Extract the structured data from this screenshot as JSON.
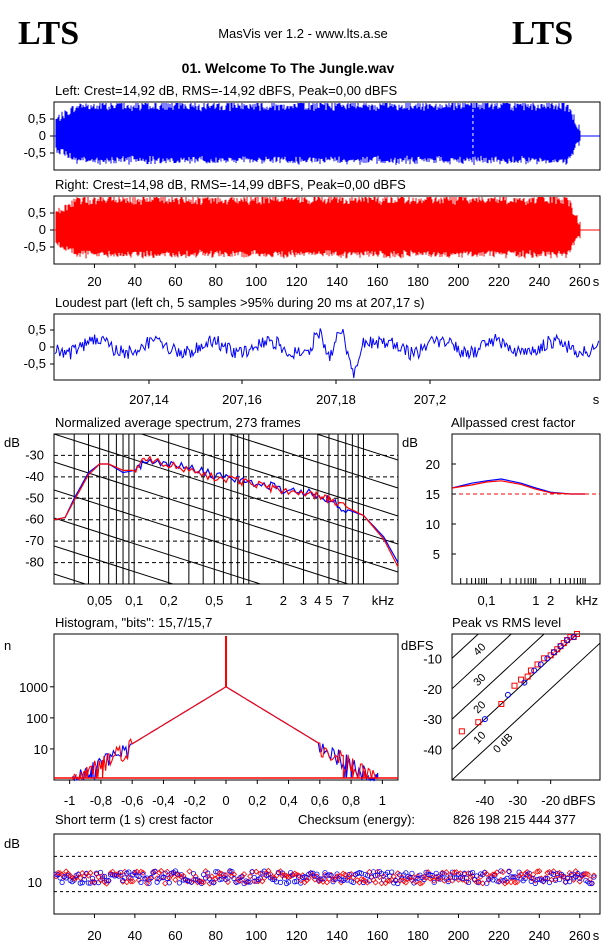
{
  "header": {
    "logo_left": "LTS",
    "logo_right": "LTS",
    "app_title": "MasVis ver 1.2 - www.lts.a.se",
    "file_title": "01. Welcome To The Jungle.wav"
  },
  "chart_data": [
    {
      "id": "left_waveform",
      "type": "area",
      "title": "Left: Crest=14,92 dB, RMS=-14,92 dBFS, Peak=0,00 dBFS",
      "color": "#0000ff",
      "yticks": [
        "0,5",
        "0",
        "-0,5"
      ],
      "ylim": [
        -1,
        1
      ],
      "xlim": [
        0,
        270
      ],
      "marker_x": 207.17
    },
    {
      "id": "right_waveform",
      "type": "area",
      "title": "Right: Crest=14,98 dB, RMS=-14,99 dBFS, Peak=0,00 dBFS",
      "color": "#ff0000",
      "yticks": [
        "0,5",
        "0",
        "-0,5"
      ],
      "ylim": [
        -1,
        1
      ],
      "xlim": [
        0,
        270
      ],
      "xticks": [
        "20",
        "40",
        "60",
        "80",
        "100",
        "120",
        "140",
        "160",
        "180",
        "200",
        "220",
        "240",
        "260",
        "s"
      ]
    },
    {
      "id": "loudest_part",
      "type": "line",
      "title": "Loudest part (left  ch, 5 samples >95% during 20 ms at 207,17 s)",
      "color": "#0000ff",
      "yticks": [
        "0,5",
        "0",
        "-0,5"
      ],
      "xticks": [
        "207,14",
        "207,16",
        "207,18",
        "207,2",
        "s"
      ]
    },
    {
      "id": "spectrum",
      "type": "line",
      "title": "Normalized average spectrum, 273 frames",
      "ylabel": "dB",
      "yticks": [
        "-30",
        "-40",
        "-50",
        "-60",
        "-70",
        "-80"
      ],
      "xticks": [
        "0,05",
        "0,1",
        "0,2",
        "0,5",
        "1",
        "2",
        "3",
        "4",
        "5",
        "7",
        "kHz"
      ],
      "xlim_khz": [
        0.02,
        20
      ],
      "ylim": [
        -90,
        -20
      ],
      "series": [
        {
          "color": "#0000ff",
          "x": [
            0.02,
            0.025,
            0.03,
            0.04,
            0.05,
            0.06,
            0.08,
            0.1,
            0.13,
            0.2,
            0.3,
            0.5,
            0.8,
            1,
            1.5,
            2,
            3,
            4,
            5,
            7,
            10,
            15,
            20
          ],
          "y": [
            -60,
            -59,
            -50,
            -38,
            -34,
            -34,
            -38,
            -37,
            -32,
            -34,
            -36,
            -39,
            -41,
            -43,
            -44,
            -46,
            -47,
            -48,
            -51,
            -55,
            -58,
            -68,
            -80
          ]
        },
        {
          "color": "#ff0000",
          "x": [
            0.02,
            0.025,
            0.03,
            0.04,
            0.05,
            0.06,
            0.08,
            0.1,
            0.13,
            0.2,
            0.3,
            0.5,
            0.8,
            1,
            1.5,
            2,
            3,
            4,
            5,
            7,
            10,
            15,
            20
          ],
          "y": [
            -60,
            -59,
            -51,
            -39,
            -34,
            -34,
            -37,
            -37,
            -31,
            -34,
            -37,
            -40,
            -42,
            -43,
            -45,
            -46,
            -48,
            -49,
            -51,
            -54,
            -58,
            -69,
            -82
          ]
        }
      ]
    },
    {
      "id": "allpassed_crest",
      "type": "line",
      "title": "Allpassed crest factor",
      "ylabel": "dB",
      "yticks": [
        "20",
        "15",
        "10",
        "5"
      ],
      "xticks": [
        "0,1",
        "1",
        "2",
        "kHz"
      ],
      "ylim": [
        0,
        25
      ],
      "reference_db": 15,
      "series": [
        {
          "color": "#0000ff",
          "x": [
            0.02,
            0.05,
            0.1,
            0.2,
            0.5,
            1,
            2,
            5,
            10
          ],
          "y": [
            16,
            16.8,
            17.2,
            17.5,
            16.8,
            16,
            15.3,
            15,
            15
          ]
        },
        {
          "color": "#ff0000",
          "x": [
            0.02,
            0.05,
            0.1,
            0.2,
            0.5,
            1,
            2,
            5,
            10
          ],
          "y": [
            16,
            16.5,
            17,
            17.2,
            16.6,
            15.8,
            15.2,
            15,
            15
          ]
        }
      ]
    },
    {
      "id": "histogram",
      "type": "line",
      "title": "Histogram, \"bits\": 15,7/15,7",
      "ylabel": "n",
      "yticks": [
        "1000",
        "100",
        "10"
      ],
      "xticks": [
        "-1",
        "-0,8",
        "-0,6",
        "-0,4",
        "-0,2",
        "0",
        "0,2",
        "0,4",
        "0,6",
        "0,8",
        "1"
      ],
      "xlim": [
        -1.1,
        1.1
      ],
      "ylim_log": [
        1,
        50000
      ],
      "peak_n": 1000,
      "edge_n": 1
    },
    {
      "id": "peak_vs_rms",
      "type": "scatter",
      "title": "Peak vs RMS level",
      "ylabel": "dBFS",
      "xlabel": "dBFS",
      "yticks": [
        "-10",
        "-20",
        "-30",
        "-40"
      ],
      "xticks": [
        "-40",
        "-30",
        "-20"
      ],
      "xlim": [
        -50,
        -5
      ],
      "ylim": [
        -50,
        -2
      ],
      "diag_labels": [
        "40",
        "30",
        "20",
        "10",
        "0 dB"
      ],
      "series": [
        {
          "color": "#ff0000",
          "x": [
            -47,
            -42,
            -35,
            -31,
            -29,
            -27,
            -26,
            -24,
            -22,
            -20,
            -19,
            -18,
            -17,
            -16,
            -15,
            -14,
            -13,
            -12
          ],
          "y": [
            -34,
            -31,
            -25,
            -19,
            -17,
            -16,
            -14,
            -12,
            -10,
            -9,
            -8,
            -7,
            -6,
            -5,
            -4,
            -3,
            -3,
            -2
          ]
        },
        {
          "color": "#0000ff",
          "x": [
            -40,
            -33,
            -28,
            -25,
            -23,
            -21,
            -19,
            -17,
            -15,
            -13
          ],
          "y": [
            -30,
            -22,
            -18,
            -14,
            -12,
            -10,
            -8,
            -6,
            -4,
            -3
          ]
        }
      ]
    },
    {
      "id": "short_term_crest",
      "type": "scatter",
      "title": "Short term (1 s) crest factor",
      "checksum_label": "Checksum (energy):",
      "checksum_value": "826 198 215 444 377",
      "ylabel": "dB",
      "yticks": [
        "10"
      ],
      "xticks": [
        "20",
        "40",
        "60",
        "80",
        "100",
        "120",
        "140",
        "160",
        "180",
        "200",
        "220",
        "240",
        "260",
        "s"
      ],
      "xlim": [
        0,
        270
      ],
      "ylim": [
        0,
        25
      ],
      "mean_db": 11.5
    }
  ]
}
